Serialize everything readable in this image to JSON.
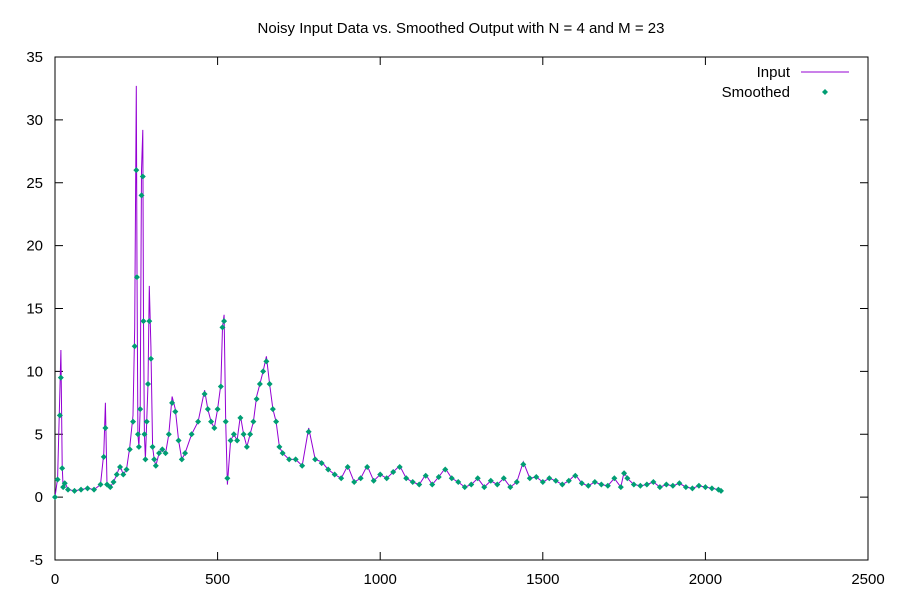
{
  "chart_data": {
    "type": "line",
    "title": "Noisy Input Data vs. Smoothed Output with N = 4 and M = 23",
    "xlabel": "",
    "ylabel": "",
    "xlim": [
      0,
      2500
    ],
    "ylim": [
      -5,
      35
    ],
    "x_ticks": [
      "0",
      "500",
      "1000",
      "1500",
      "2000",
      "2500"
    ],
    "y_ticks": [
      "-5",
      "0",
      "5",
      "10",
      "15",
      "20",
      "25",
      "30",
      "35"
    ],
    "grid": false,
    "legend_position": "top-right",
    "colors": {
      "input": "#9400d3",
      "smoothed": "#009e73"
    },
    "series": [
      {
        "name": "Input",
        "style": "line",
        "x": [
          0,
          8,
          15,
          18,
          22,
          25,
          30,
          40,
          60,
          80,
          100,
          120,
          140,
          150,
          155,
          160,
          170,
          180,
          190,
          200,
          210,
          220,
          230,
          240,
          245,
          250,
          252,
          255,
          258,
          262,
          266,
          270,
          272,
          275,
          278,
          282,
          286,
          290,
          295,
          300,
          305,
          310,
          320,
          330,
          340,
          350,
          360,
          370,
          380,
          390,
          400,
          420,
          440,
          460,
          470,
          480,
          490,
          500,
          510,
          515,
          520,
          525,
          530,
          540,
          550,
          560,
          570,
          580,
          590,
          600,
          610,
          620,
          630,
          640,
          650,
          660,
          670,
          680,
          690,
          700,
          720,
          740,
          760,
          780,
          800,
          820,
          840,
          860,
          880,
          900,
          920,
          940,
          960,
          980,
          1000,
          1020,
          1040,
          1060,
          1080,
          1100,
          1120,
          1140,
          1160,
          1180,
          1200,
          1220,
          1240,
          1260,
          1280,
          1300,
          1320,
          1340,
          1360,
          1380,
          1400,
          1420,
          1440,
          1460,
          1480,
          1500,
          1520,
          1540,
          1560,
          1580,
          1600,
          1620,
          1640,
          1660,
          1680,
          1700,
          1720,
          1740,
          1750,
          1760,
          1780,
          1800,
          1820,
          1840,
          1860,
          1880,
          1900,
          1920,
          1940,
          1960,
          1980,
          2000,
          2020,
          2040,
          2048
        ],
        "y": [
          0,
          1.5,
          8.5,
          11.7,
          2.5,
          0.8,
          1.2,
          0.6,
          0.5,
          0.6,
          0.7,
          0.6,
          1.0,
          3.5,
          7.5,
          1.0,
          0.8,
          1.2,
          1.8,
          2.5,
          1.8,
          2.2,
          4.0,
          6.5,
          13.5,
          32.7,
          18,
          5,
          4,
          7,
          26,
          29.2,
          14,
          5,
          3,
          6,
          9,
          16.8,
          12,
          4,
          3,
          2.5,
          3.5,
          3.8,
          3.5,
          5,
          8,
          7,
          4.5,
          3,
          3.5,
          5,
          6,
          8.5,
          7,
          6,
          5.5,
          7,
          9,
          13.5,
          14.5,
          6,
          1,
          4.5,
          5,
          4.5,
          6.5,
          5,
          4,
          5,
          6,
          8,
          9,
          10,
          11.2,
          9,
          7,
          6,
          4,
          3.5,
          3,
          3,
          2.5,
          5.5,
          3,
          2.8,
          2.2,
          1.8,
          1.5,
          2.5,
          1.2,
          1.5,
          2.5,
          1.3,
          1.8,
          1.5,
          2,
          2.5,
          1.5,
          1.2,
          1.0,
          1.8,
          1.0,
          1.6,
          2.3,
          1.5,
          1.2,
          0.8,
          1.0,
          1.5,
          0.8,
          1.3,
          1.0,
          1.5,
          0.8,
          1.2,
          2.8,
          1.5,
          1.6,
          1.2,
          1.5,
          1.3,
          1.0,
          1.3,
          1.8,
          1.1,
          0.9,
          1.2,
          1.0,
          0.9,
          1.5,
          0.8,
          2.0,
          1.5,
          1.0,
          0.9,
          1.0,
          1.2,
          0.8,
          1.0,
          0.9,
          1.1,
          0.8,
          0.7,
          0.9,
          0.8,
          0.7,
          0.6,
          0.5
        ]
      },
      {
        "name": "Smoothed",
        "style": "points",
        "x": [
          0,
          8,
          15,
          18,
          22,
          25,
          30,
          40,
          60,
          80,
          100,
          120,
          140,
          150,
          155,
          160,
          170,
          180,
          190,
          200,
          210,
          220,
          230,
          240,
          245,
          250,
          252,
          255,
          258,
          262,
          266,
          270,
          272,
          275,
          278,
          282,
          286,
          290,
          295,
          300,
          305,
          310,
          320,
          330,
          340,
          350,
          360,
          370,
          380,
          390,
          400,
          420,
          440,
          460,
          470,
          480,
          490,
          500,
          510,
          515,
          520,
          525,
          530,
          540,
          550,
          560,
          570,
          580,
          590,
          600,
          610,
          620,
          630,
          640,
          650,
          660,
          670,
          680,
          690,
          700,
          720,
          740,
          760,
          780,
          800,
          820,
          840,
          860,
          880,
          900,
          920,
          940,
          960,
          980,
          1000,
          1020,
          1040,
          1060,
          1080,
          1100,
          1120,
          1140,
          1160,
          1180,
          1200,
          1220,
          1240,
          1260,
          1280,
          1300,
          1320,
          1340,
          1360,
          1380,
          1400,
          1420,
          1440,
          1460,
          1480,
          1500,
          1520,
          1540,
          1560,
          1580,
          1600,
          1620,
          1640,
          1660,
          1680,
          1700,
          1720,
          1740,
          1750,
          1760,
          1780,
          1800,
          1820,
          1840,
          1860,
          1880,
          1900,
          1920,
          1940,
          1960,
          1980,
          2000,
          2020,
          2040,
          2048
        ],
        "y": [
          0,
          1.4,
          6.5,
          9.5,
          2.3,
          0.8,
          1.1,
          0.6,
          0.5,
          0.6,
          0.7,
          0.6,
          1.0,
          3.2,
          5.5,
          1.0,
          0.8,
          1.2,
          1.8,
          2.4,
          1.8,
          2.2,
          3.8,
          6.0,
          12,
          26,
          17.5,
          5,
          4,
          7,
          24,
          25.5,
          14,
          5,
          3,
          6,
          9,
          14,
          11,
          4,
          3,
          2.5,
          3.5,
          3.8,
          3.5,
          5,
          7.5,
          6.8,
          4.5,
          3,
          3.5,
          5,
          6,
          8.2,
          7,
          6,
          5.5,
          7,
          8.8,
          13.5,
          14,
          6,
          1.5,
          4.5,
          5,
          4.5,
          6.3,
          5,
          4,
          5,
          6,
          7.8,
          9,
          10,
          10.8,
          9,
          7,
          6,
          4,
          3.5,
          3,
          3,
          2.5,
          5.2,
          3,
          2.7,
          2.2,
          1.8,
          1.5,
          2.4,
          1.2,
          1.5,
          2.4,
          1.3,
          1.8,
          1.5,
          2,
          2.4,
          1.5,
          1.2,
          1.0,
          1.7,
          1.0,
          1.6,
          2.2,
          1.5,
          1.2,
          0.8,
          1.0,
          1.5,
          0.8,
          1.3,
          1.0,
          1.5,
          0.8,
          1.2,
          2.6,
          1.5,
          1.6,
          1.2,
          1.5,
          1.3,
          1.0,
          1.3,
          1.7,
          1.1,
          0.9,
          1.2,
          1.0,
          0.9,
          1.5,
          0.8,
          1.9,
          1.5,
          1.0,
          0.9,
          1.0,
          1.2,
          0.8,
          1.0,
          0.9,
          1.1,
          0.8,
          0.7,
          0.9,
          0.8,
          0.7,
          0.6,
          0.5
        ]
      }
    ]
  }
}
